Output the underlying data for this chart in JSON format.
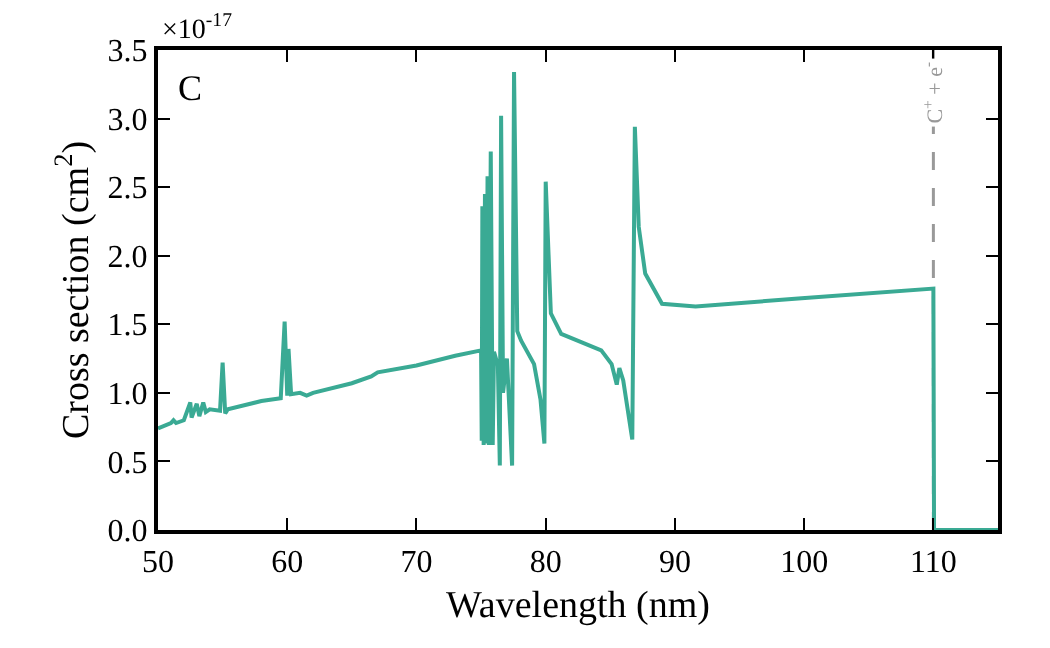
{
  "chart_data": {
    "type": "line",
    "xlabel": "Wavelength (nm)",
    "ylabel": "Cross section (cm$^{2}$)",
    "annotations": [
      "×10$^{-17}$",
      "C"
    ],
    "xlim": [
      50,
      115
    ],
    "xticks": [
      50,
      60,
      70,
      80,
      90,
      100,
      110
    ],
    "ylim": [
      0,
      3.5
    ],
    "yticks": [
      {
        "value": 0,
        "label": "0.0"
      },
      0.5,
      {
        "value": 1,
        "label": "1.0"
      },
      1.5,
      {
        "value": 2,
        "label": "2.0"
      },
      2.5,
      {
        "value": 3,
        "label": "3.0"
      },
      3.5
    ],
    "grid": false,
    "marker": "none",
    "line_style": "solid",
    "ref_lines": [
      {
        "axis": "x",
        "value": 110,
        "label": "C$^{+}$ + e$^{-}$",
        "color": "#999999",
        "line_style": "dashed"
      }
    ],
    "series": [
      {
        "color": "#3aaa94",
        "x": [
          50,
          51,
          51.2,
          51.4,
          52,
          52.5,
          52.6,
          53,
          53.2,
          53.5,
          53.7,
          54,
          54.8,
          55,
          55.2,
          55.4,
          58,
          59.5,
          59.8,
          60,
          60.1,
          60.3,
          61,
          61.5,
          62,
          65,
          66.5,
          67,
          70,
          73,
          75,
          75.05,
          75.1,
          75.2,
          75.3,
          75.4,
          75.5,
          75.6,
          75.75,
          75.9,
          76,
          76.3,
          76.45,
          76.55,
          76.7,
          77,
          77.4,
          77.55,
          77.8,
          78.1,
          79.1,
          79.6,
          79.9,
          80,
          80.4,
          81.2,
          84.3,
          85.1,
          85.5,
          85.7,
          86,
          86.7,
          86.9,
          87.2,
          87.7,
          89,
          91.6,
          99.8,
          110,
          110.05,
          115
        ],
        "values": [
          0.74,
          0.78,
          0.8,
          0.78,
          0.8,
          0.93,
          0.82,
          0.92,
          0.83,
          0.93,
          0.86,
          0.88,
          0.87,
          1.22,
          0.85,
          0.88,
          0.94,
          0.96,
          1.52,
          0.98,
          1.32,
          0.99,
          1.0,
          0.98,
          1.0,
          1.07,
          1.12,
          1.15,
          1.2,
          1.27,
          1.31,
          0.65,
          2.36,
          0.62,
          2.45,
          0.63,
          2.58,
          0.62,
          2.76,
          0.62,
          1.3,
          1.2,
          0.47,
          3.02,
          1.0,
          1.25,
          0.47,
          3.34,
          1.45,
          1.38,
          1.21,
          0.95,
          0.63,
          2.54,
          1.58,
          1.43,
          1.31,
          1.21,
          1.06,
          1.18,
          1.09,
          0.66,
          2.94,
          2.21,
          1.87,
          1.65,
          1.63,
          1.69,
          1.76,
          0,
          0
        ]
      }
    ]
  }
}
